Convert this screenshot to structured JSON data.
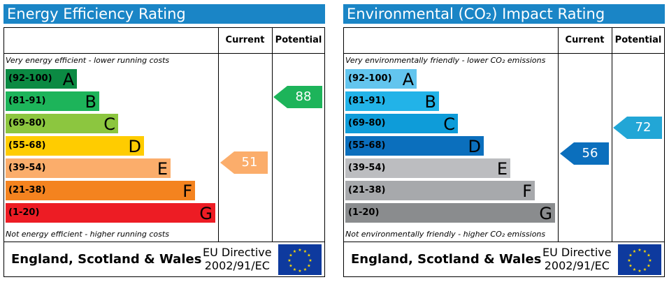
{
  "energy": {
    "title": "Energy Efficiency Rating",
    "col_current": "Current",
    "col_potential": "Potential",
    "top_caption": "Very energy efficient - lower running costs",
    "bottom_caption": "Not energy efficient - higher running costs",
    "bands": [
      {
        "range": "(92-100)",
        "letter": "A",
        "color": "#0b8a43"
      },
      {
        "range": "(81-91)",
        "letter": "B",
        "color": "#1db45a"
      },
      {
        "range": "(69-80)",
        "letter": "C",
        "color": "#8cc63f"
      },
      {
        "range": "(55-68)",
        "letter": "D",
        "color": "#ffcc00"
      },
      {
        "range": "(39-54)",
        "letter": "E",
        "color": "#fbad6b"
      },
      {
        "range": "(21-38)",
        "letter": "F",
        "color": "#f4831f"
      },
      {
        "range": "(1-20)",
        "letter": "G",
        "color": "#ed1c24"
      }
    ],
    "current_value": "51",
    "current_color": "#fbad6b",
    "potential_value": "88",
    "potential_color": "#1db45a",
    "region": "England, Scotland & Wales",
    "directive_line1": "EU Directive",
    "directive_line2": "2002/91/EC"
  },
  "environmental": {
    "title": "Environmental (CO₂) Impact Rating",
    "col_current": "Current",
    "col_potential": "Potential",
    "top_caption": "Very environmentally friendly - lower CO₂ emissions",
    "bottom_caption": "Not environmentally friendly - higher CO₂ emissions",
    "bands": [
      {
        "range": "(92-100)",
        "letter": "A",
        "color": "#63c5ee"
      },
      {
        "range": "(81-91)",
        "letter": "B",
        "color": "#22b3e8"
      },
      {
        "range": "(69-80)",
        "letter": "C",
        "color": "#0e9cd9"
      },
      {
        "range": "(55-68)",
        "letter": "D",
        "color": "#0b6fbd"
      },
      {
        "range": "(39-54)",
        "letter": "E",
        "color": "#bcbdc0"
      },
      {
        "range": "(21-38)",
        "letter": "F",
        "color": "#a7a9ac"
      },
      {
        "range": "(1-20)",
        "letter": "G",
        "color": "#8a8c8e"
      }
    ],
    "current_value": "56",
    "current_color": "#0b6fbd",
    "potential_value": "72",
    "potential_color": "#22a6d6",
    "region": "England, Scotland & Wales",
    "directive_line1": "EU Directive",
    "directive_line2": "2002/91/EC"
  }
}
